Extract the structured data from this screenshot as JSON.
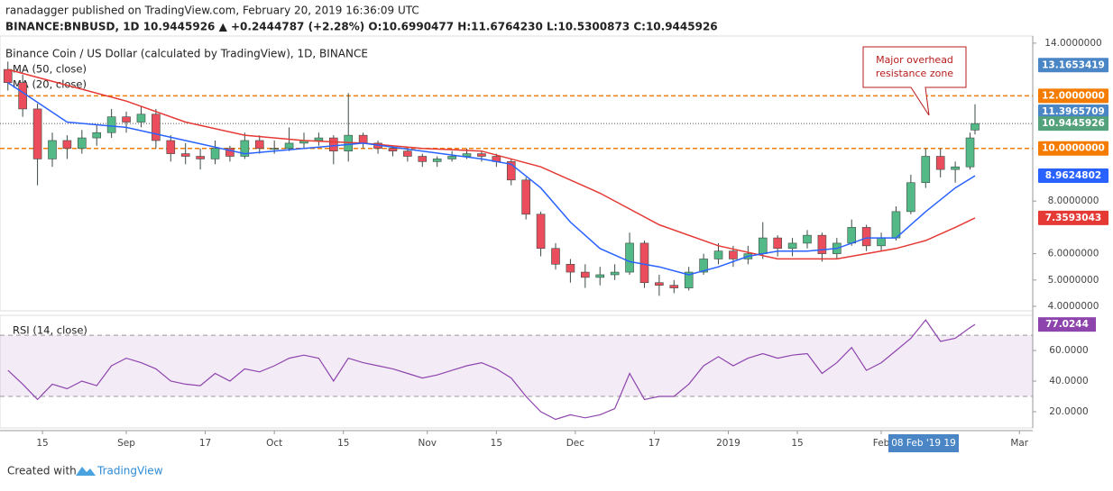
{
  "header": {
    "line1": "ranadagger published on TradingView.com, February 20, 2019 16:36:09 UTC",
    "line2": "BINANCE:BNBUSD, 1D  10.9445926  ▲ +0.2444787 (+2.28%)  O:10.6990477  H:11.6764230  L:10.5300873  C:10.9445926"
  },
  "footer": {
    "prefix": "Created with",
    "brand": "TradingView"
  },
  "chart_data": [
    {
      "type": "candlestick",
      "title": "Binance Coin / US Dollar (calculated by TradingView), 1D, BINANCE",
      "up_color": "#53b987",
      "down_color": "#eb4d5c",
      "xlim": [
        -1.6,
        207.7
      ],
      "xticks": [
        {
          "value": 7,
          "label": "15"
        },
        {
          "value": 24,
          "label": "Sep"
        },
        {
          "value": 40,
          "label": "17"
        },
        {
          "value": 54,
          "label": "Oct"
        },
        {
          "value": 68,
          "label": "15"
        },
        {
          "value": 85,
          "label": "Nov"
        },
        {
          "value": 99,
          "label": "15"
        },
        {
          "value": 115,
          "label": "Dec"
        },
        {
          "value": 131,
          "label": "17"
        },
        {
          "value": 146,
          "label": "2019"
        },
        {
          "value": 160,
          "label": "15"
        },
        {
          "value": 177,
          "label": "Feb"
        },
        {
          "value": 205,
          "label": "Mar"
        }
      ],
      "ylim": [
        3.83,
        14.27
      ],
      "yticks": [
        {
          "value": 4,
          "label": "4.0000000"
        },
        {
          "value": 5,
          "label": "5.0000000"
        },
        {
          "value": 6,
          "label": "6.0000000"
        },
        {
          "value": 8,
          "label": "8.0000000"
        },
        {
          "value": 14,
          "label": "14.0000000"
        }
      ],
      "candles": [
        [
          0,
          13.0,
          13.3,
          12.2,
          12.5
        ],
        [
          3,
          12.5,
          12.8,
          11.2,
          11.5
        ],
        [
          6,
          11.5,
          11.7,
          8.6,
          9.6
        ],
        [
          9,
          9.6,
          10.6,
          9.3,
          10.3
        ],
        [
          12,
          10.3,
          10.5,
          9.6,
          10.0
        ],
        [
          15,
          10.0,
          10.7,
          9.8,
          10.4
        ],
        [
          18,
          10.4,
          10.9,
          10.1,
          10.6
        ],
        [
          21,
          10.6,
          11.5,
          10.4,
          11.2
        ],
        [
          24,
          11.2,
          11.4,
          10.6,
          11.0
        ],
        [
          27,
          11.0,
          11.6,
          10.8,
          11.3
        ],
        [
          30,
          11.3,
          11.5,
          10.0,
          10.3
        ],
        [
          33,
          10.3,
          10.5,
          9.5,
          9.8
        ],
        [
          36,
          9.8,
          10.2,
          9.4,
          9.7
        ],
        [
          39,
          9.7,
          10.0,
          9.2,
          9.6
        ],
        [
          42,
          9.6,
          10.3,
          9.4,
          10.0
        ],
        [
          45,
          10.0,
          10.1,
          9.5,
          9.7
        ],
        [
          48,
          9.7,
          10.6,
          9.6,
          10.3
        ],
        [
          51,
          10.3,
          10.5,
          9.8,
          10.0
        ],
        [
          54,
          10.0,
          10.3,
          9.8,
          10.0
        ],
        [
          57,
          10.0,
          10.8,
          9.9,
          10.2
        ],
        [
          60,
          10.2,
          10.6,
          10.0,
          10.3
        ],
        [
          63,
          10.3,
          10.6,
          10.1,
          10.4
        ],
        [
          66,
          10.4,
          10.5,
          9.4,
          9.9
        ],
        [
          69,
          9.9,
          12.1,
          9.5,
          10.5
        ],
        [
          72,
          10.5,
          10.6,
          10.0,
          10.2
        ],
        [
          75,
          10.2,
          10.3,
          9.8,
          10.0
        ],
        [
          78,
          10.0,
          10.1,
          9.7,
          9.9
        ],
        [
          81,
          9.9,
          10.0,
          9.5,
          9.7
        ],
        [
          84,
          9.7,
          9.8,
          9.3,
          9.5
        ],
        [
          87,
          9.5,
          9.7,
          9.3,
          9.6
        ],
        [
          90,
          9.6,
          9.9,
          9.5,
          9.7
        ],
        [
          93,
          9.7,
          10.0,
          9.6,
          9.8
        ],
        [
          96,
          9.8,
          9.9,
          9.5,
          9.7
        ],
        [
          99,
          9.7,
          9.8,
          9.3,
          9.5
        ],
        [
          102,
          9.5,
          9.6,
          8.6,
          8.8
        ],
        [
          105,
          8.8,
          8.9,
          7.3,
          7.5
        ],
        [
          108,
          7.5,
          7.6,
          5.9,
          6.2
        ],
        [
          111,
          6.2,
          6.4,
          5.4,
          5.6
        ],
        [
          114,
          5.6,
          5.8,
          4.9,
          5.3
        ],
        [
          117,
          5.3,
          5.6,
          4.7,
          5.1
        ],
        [
          120,
          5.1,
          5.5,
          4.8,
          5.2
        ],
        [
          123,
          5.2,
          5.6,
          5.0,
          5.3
        ],
        [
          126,
          5.3,
          6.8,
          5.2,
          6.4
        ],
        [
          129,
          6.4,
          6.5,
          4.7,
          4.9
        ],
        [
          132,
          4.9,
          5.2,
          4.4,
          4.8
        ],
        [
          135,
          4.8,
          5.0,
          4.5,
          4.7
        ],
        [
          138,
          4.7,
          5.5,
          4.6,
          5.3
        ],
        [
          141,
          5.3,
          6.0,
          5.2,
          5.8
        ],
        [
          144,
          5.8,
          6.4,
          5.6,
          6.1
        ],
        [
          147,
          6.1,
          6.3,
          5.5,
          5.8
        ],
        [
          150,
          5.8,
          6.3,
          5.6,
          6.0
        ],
        [
          153,
          6.0,
          7.2,
          5.8,
          6.6
        ],
        [
          156,
          6.6,
          6.7,
          5.9,
          6.2
        ],
        [
          159,
          6.2,
          6.6,
          5.9,
          6.4
        ],
        [
          162,
          6.4,
          6.9,
          6.2,
          6.7
        ],
        [
          165,
          6.7,
          6.8,
          5.7,
          6.0
        ],
        [
          168,
          6.0,
          6.6,
          5.8,
          6.4
        ],
        [
          171,
          6.4,
          7.3,
          6.3,
          7.0
        ],
        [
          174,
          7.0,
          7.1,
          6.1,
          6.3
        ],
        [
          177,
          6.3,
          6.8,
          6.1,
          6.6
        ],
        [
          180,
          6.6,
          7.8,
          6.5,
          7.6
        ],
        [
          183,
          7.6,
          9.0,
          7.5,
          8.7
        ],
        [
          186,
          8.7,
          10.0,
          8.5,
          9.7
        ],
        [
          189,
          9.7,
          10.0,
          8.9,
          9.2
        ],
        [
          192,
          9.2,
          9.5,
          8.7,
          9.3
        ],
        [
          195,
          9.3,
          10.6,
          9.2,
          10.4
        ],
        [
          196,
          10.6990477,
          11.676423,
          10.5300873,
          10.9445926
        ]
      ],
      "series": [
        {
          "name": "MA (50, close)",
          "color": "#e53935",
          "x": [
            0,
            12,
            24,
            36,
            48,
            60,
            72,
            84,
            96,
            108,
            120,
            132,
            144,
            156,
            168,
            180,
            186,
            192,
            196
          ],
          "values": [
            13.0,
            12.4,
            11.8,
            11.0,
            10.5,
            10.3,
            10.2,
            10.0,
            9.9,
            9.3,
            8.3,
            7.1,
            6.3,
            5.8,
            5.8,
            6.2,
            6.5,
            7.0,
            7.3593043
          ]
        },
        {
          "name": "MA (20, close)",
          "color": "#2962ff",
          "x": [
            0,
            12,
            24,
            36,
            48,
            60,
            72,
            84,
            96,
            102,
            108,
            114,
            120,
            126,
            132,
            138,
            144,
            150,
            156,
            162,
            168,
            174,
            180,
            186,
            192,
            196
          ],
          "values": [
            12.5,
            11.0,
            10.8,
            10.3,
            9.8,
            10.0,
            10.2,
            9.9,
            9.6,
            9.4,
            8.5,
            7.2,
            6.2,
            5.7,
            5.5,
            5.2,
            5.5,
            5.9,
            6.1,
            6.1,
            6.2,
            6.6,
            6.6,
            7.6,
            8.5,
            8.9624802
          ]
        }
      ],
      "hlines": [
        {
          "value": 12,
          "color": "#f57c00"
        },
        {
          "value": 10,
          "color": "#f57c00"
        }
      ],
      "last_line": 10.9445926,
      "price_labels": [
        {
          "value": 13.1653419,
          "label": "13.1653419",
          "color": "#4a86c5"
        },
        {
          "value": 12,
          "label": "12.0000000",
          "color": "#f57c00"
        },
        {
          "value": 11.3965709,
          "label": "11.3965709",
          "color": "#4a86c5"
        },
        {
          "value": 10.9445926,
          "label": "10.9445926",
          "color": "#53a27c"
        },
        {
          "value": 10,
          "label": "10.0000000",
          "color": "#f57c00"
        },
        {
          "value": 8.9624802,
          "label": "8.9624802",
          "color": "#2962ff"
        },
        {
          "value": 7.3593043,
          "label": "7.3593043",
          "color": "#e53935"
        }
      ],
      "annotation": {
        "lines": [
          "Major overhead",
          "resistance zone"
        ],
        "color": "#b71c1c"
      },
      "crosshair_label": "08 Feb '19  19"
    },
    {
      "type": "line",
      "title": "RSI (14, close)",
      "color": "#8e44ad",
      "ylim": [
        9.4,
        83
      ],
      "yticks": [
        {
          "value": 20,
          "label": "20.0000"
        },
        {
          "value": 40,
          "label": "40.0000"
        },
        {
          "value": 60,
          "label": "60.0000"
        }
      ],
      "bands": [
        70,
        30
      ],
      "x": [
        0,
        3,
        6,
        9,
        12,
        15,
        18,
        21,
        24,
        27,
        30,
        33,
        36,
        39,
        42,
        45,
        48,
        51,
        54,
        57,
        60,
        63,
        66,
        69,
        72,
        75,
        78,
        81,
        84,
        87,
        90,
        93,
        96,
        99,
        102,
        105,
        108,
        111,
        114,
        117,
        120,
        123,
        126,
        129,
        132,
        135,
        138,
        141,
        144,
        147,
        150,
        153,
        156,
        159,
        162,
        165,
        168,
        171,
        174,
        177,
        180,
        183,
        186,
        189,
        192,
        195,
        196
      ],
      "values": [
        47,
        38,
        28,
        38,
        35,
        40,
        37,
        50,
        55,
        52,
        48,
        40,
        38,
        37,
        45,
        40,
        48,
        46,
        50,
        55,
        57,
        55,
        40,
        55,
        52,
        50,
        48,
        45,
        42,
        44,
        47,
        50,
        52,
        48,
        42,
        30,
        20,
        15,
        18,
        16,
        18,
        22,
        45,
        28,
        30,
        30,
        38,
        50,
        56,
        50,
        55,
        58,
        55,
        57,
        58,
        45,
        52,
        62,
        47,
        52,
        60,
        68,
        80,
        66,
        68,
        75,
        77.0244
      ],
      "last_label": {
        "value": 77.0244,
        "label": "77.0244"
      }
    }
  ]
}
